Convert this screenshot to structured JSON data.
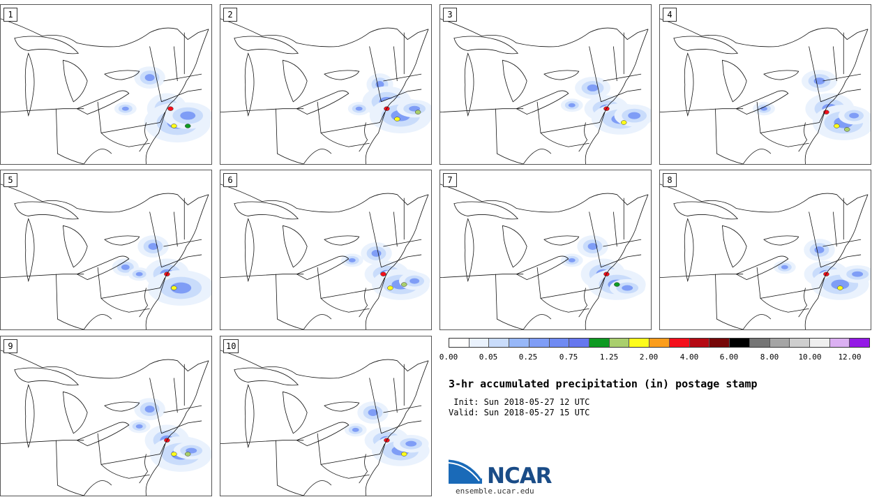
{
  "members": [
    "1",
    "2",
    "3",
    "4",
    "5",
    "6",
    "7",
    "8",
    "9",
    "10"
  ],
  "colorbar": {
    "colors": [
      "#ffffff",
      "#eaf2fd",
      "#c9dcfb",
      "#97b7f8",
      "#7f9df6",
      "#6f8af2",
      "#6677ef",
      "#0e9a22",
      "#a9cf6d",
      "#fdfc1b",
      "#fb9d1b",
      "#f40f1b",
      "#b50913",
      "#760708",
      "#000000",
      "#757575",
      "#a5a5a5",
      "#cecece",
      "#efefef",
      "#dbb0f2",
      "#9419e6"
    ],
    "ticks": [
      "0.00",
      "0.05",
      "0.25",
      "0.75",
      "1.25",
      "2.00",
      "4.00",
      "6.00",
      "8.00",
      "10.00",
      "12.00"
    ]
  },
  "title": "3-hr accumulated precipitation (in) postage stamp",
  "init": " Init: Sun 2018-05-27 12 UTC",
  "valid": "Valid: Sun 2018-05-27 15 UTC",
  "logo_text": "NCAR",
  "site": "ensemble.ucar.edu"
}
